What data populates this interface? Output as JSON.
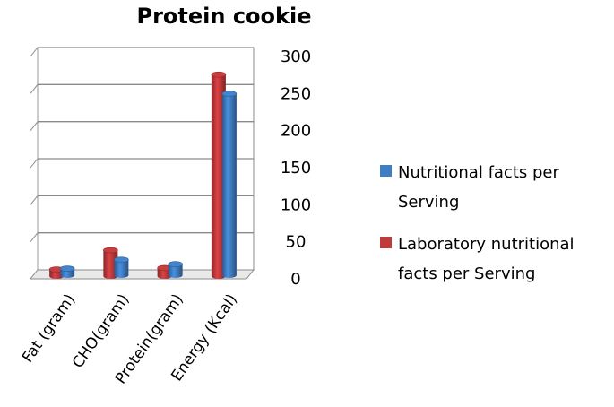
{
  "chart_data": {
    "type": "bar",
    "title": "Protein cookie",
    "categories": [
      "Fat (gram)",
      "CHO(gram)",
      "Protein(gram)",
      "Energy (Kcal)"
    ],
    "series": [
      {
        "name": "Laboratory nutritional facts per Serving",
        "color": "#c0393b",
        "values": [
          9,
          35,
          11,
          272
        ]
      },
      {
        "name": "Nutritional facts per Serving",
        "color": "#3f7ec4",
        "values": [
          9,
          21,
          15,
          245
        ]
      }
    ],
    "yticks": [
      "0",
      "50",
      "100",
      "150",
      "200",
      "250",
      "300"
    ],
    "ylim": [
      0,
      300
    ],
    "grid": true,
    "legend_position": "right",
    "legend": [
      {
        "label_lines": [
          "Nutritional facts per",
          "Serving"
        ],
        "color": "#3f7ec4"
      },
      {
        "label_lines": [
          "Laboratory nutritional",
          "facts per Serving"
        ],
        "color": "#c0393b"
      }
    ]
  }
}
